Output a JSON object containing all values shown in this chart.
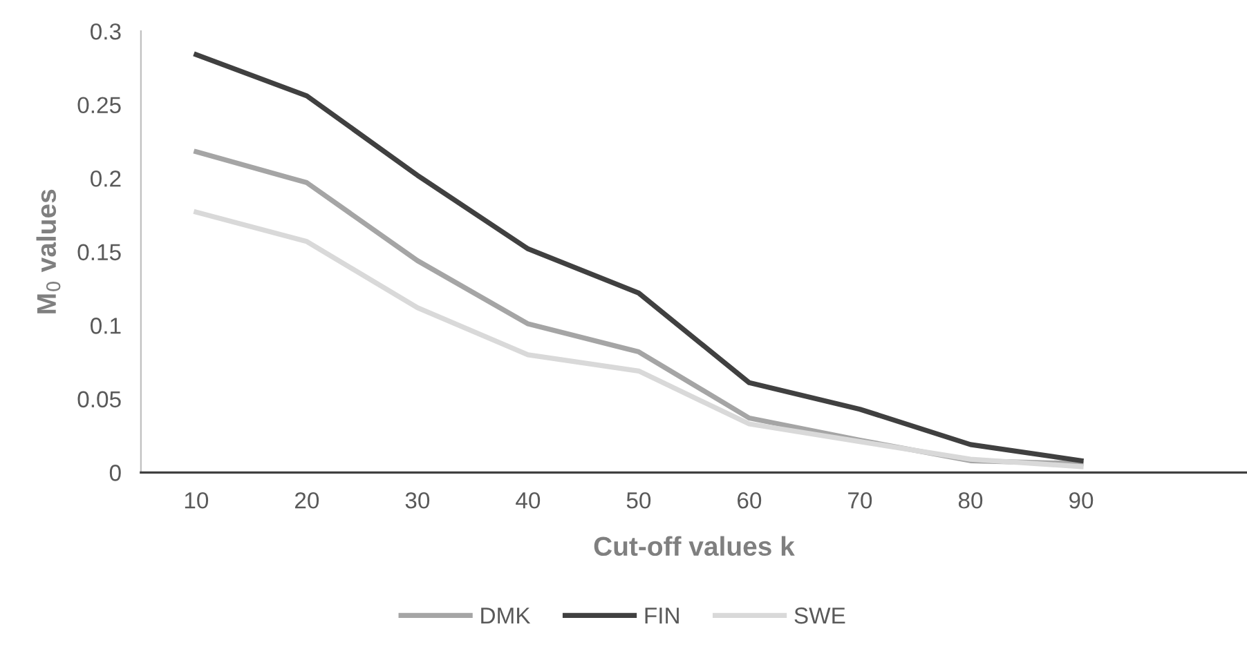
{
  "chart_data": {
    "type": "line",
    "xlabel": "Cut-off values k",
    "ylabel": "M$_{0}$ values",
    "categories": [
      "10",
      "20",
      "30",
      "40",
      "50",
      "60",
      "70",
      "80",
      "90",
      null
    ],
    "series": [
      {
        "name": "DMK",
        "color": "#a5a5a5",
        "values": [
          0.218,
          0.197,
          0.144,
          0.101,
          0.082,
          0.037,
          0.022,
          0.008,
          0.006,
          null
        ]
      },
      {
        "name": "FIN",
        "color": "#404040",
        "values": [
          0.284,
          0.256,
          0.202,
          0.152,
          0.122,
          0.061,
          0.043,
          0.019,
          0.008,
          null
        ]
      },
      {
        "name": "SWE",
        "color": "#d9d9d9",
        "values": [
          0.177,
          0.157,
          0.112,
          0.08,
          0.069,
          0.033,
          0.021,
          0.009,
          0.004,
          null
        ]
      }
    ],
    "ylim": [
      0,
      0.3
    ],
    "yticks": [
      0,
      0.05,
      0.1,
      0.15,
      0.2,
      0.25,
      0.3
    ],
    "grid": false,
    "legend": "bottom",
    "marker": "none",
    "line_style": "solid"
  }
}
